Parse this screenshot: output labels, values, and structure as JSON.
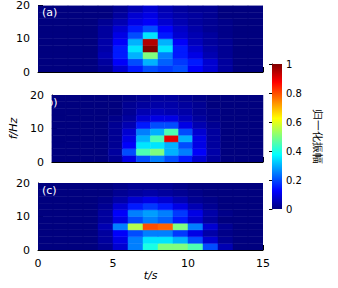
{
  "chart_data": {
    "type": "heatmap",
    "xlabel": "t/s",
    "ylabel": "f/Hz",
    "xlim": [
      0,
      15
    ],
    "xticks": [
      0,
      5,
      10,
      15
    ],
    "ylim": [
      0,
      20
    ],
    "yticks": [
      0,
      10,
      20
    ],
    "t_bins": [
      0,
      1,
      2,
      3,
      4,
      5,
      6,
      7,
      8,
      9,
      10,
      11,
      12,
      13,
      14,
      15
    ],
    "f_bins": [
      0,
      2,
      4,
      6,
      8,
      10,
      12,
      14,
      16,
      18,
      20
    ],
    "panels": [
      {
        "label": "(a)",
        "tick_labels": "y",
        "cells": [
          [
            0,
            0,
            0,
            0,
            0.02,
            0.08,
            0.15,
            0.2,
            0.18,
            0.2,
            0.12,
            0.08,
            0.03,
            0,
            0
          ],
          [
            0,
            0,
            0,
            0,
            0.03,
            0.12,
            0.2,
            0.3,
            0.22,
            0.18,
            0.15,
            0.08,
            0.03,
            0,
            0
          ],
          [
            0,
            0,
            0,
            0,
            0.05,
            0.15,
            0.3,
            0.5,
            0.25,
            0.15,
            0.1,
            0.05,
            0.02,
            0,
            0
          ],
          [
            0,
            0,
            0,
            0,
            0.04,
            0.15,
            0.35,
            1,
            0.35,
            0.15,
            0.08,
            0.04,
            0.02,
            0,
            0
          ],
          [
            0,
            0,
            0,
            0,
            0.04,
            0.12,
            0.3,
            0.95,
            0.3,
            0.12,
            0.06,
            0.03,
            0.02,
            0,
            0
          ],
          [
            0,
            0,
            0,
            0,
            0.03,
            0.1,
            0.2,
            0.35,
            0.15,
            0.08,
            0.05,
            0.03,
            0.01,
            0,
            0
          ],
          [
            0,
            0,
            0,
            0,
            0.03,
            0.08,
            0.15,
            0.2,
            0.12,
            0.07,
            0.04,
            0.02,
            0.01,
            0,
            0
          ],
          [
            0,
            0,
            0,
            0,
            0.02,
            0.05,
            0.1,
            0.12,
            0.08,
            0.05,
            0.03,
            0.02,
            0.01,
            0,
            0
          ],
          [
            0,
            0,
            0,
            0,
            0,
            0.03,
            0.08,
            0.1,
            0.06,
            0.04,
            0.03,
            0.02,
            0,
            0,
            0
          ],
          [
            0,
            0,
            0,
            0,
            0,
            0.02,
            0.05,
            0.08,
            0.05,
            0.03,
            0.02,
            0.02,
            0,
            0,
            0
          ]
        ]
      },
      {
        "label": "(b)",
        "tick_labels": "y",
        "cells": [
          [
            0,
            0,
            0,
            0,
            0.02,
            0.1,
            0.2,
            0.25,
            0.2,
            0.15,
            0.08,
            0.03,
            0,
            0,
            0
          ],
          [
            0,
            0,
            0,
            0,
            0.03,
            0.2,
            0.45,
            0.5,
            0.3,
            0.25,
            0.12,
            0.04,
            0,
            0,
            0
          ],
          [
            0,
            0,
            0,
            0,
            0.02,
            0.12,
            0.35,
            0.35,
            0.3,
            0.2,
            0.1,
            0.03,
            0,
            0,
            0
          ],
          [
            0,
            0,
            0,
            0,
            0.02,
            0.1,
            0.3,
            0.45,
            0.9,
            0.3,
            0.1,
            0.03,
            0,
            0,
            0
          ],
          [
            0,
            0,
            0,
            0,
            0.02,
            0.08,
            0.25,
            0.3,
            0.45,
            0.2,
            0.08,
            0.03,
            0,
            0,
            0
          ],
          [
            0,
            0,
            0,
            0,
            0.02,
            0.05,
            0.15,
            0.2,
            0.2,
            0.1,
            0.05,
            0.02,
            0,
            0,
            0
          ],
          [
            0,
            0,
            0,
            0,
            0.01,
            0.03,
            0.08,
            0.1,
            0.1,
            0.06,
            0.03,
            0.01,
            0,
            0,
            0
          ],
          [
            0,
            0,
            0,
            0,
            0,
            0.02,
            0.05,
            0.06,
            0.05,
            0.04,
            0.02,
            0.01,
            0,
            0,
            0
          ],
          [
            0,
            0,
            0,
            0,
            0,
            0.02,
            0.03,
            0.04,
            0.04,
            0.03,
            0.02,
            0,
            0,
            0,
            0
          ],
          [
            0,
            0,
            0,
            0,
            0,
            0.01,
            0.02,
            0.03,
            0.03,
            0.02,
            0.01,
            0,
            0,
            0,
            0
          ]
        ]
      },
      {
        "label": "(c)",
        "cells": [
          [
            0,
            0,
            0,
            0,
            0.02,
            0.08,
            0.25,
            0.4,
            0.5,
            0.5,
            0.45,
            0.2,
            0.05,
            0,
            0
          ],
          [
            0,
            0,
            0,
            0,
            0.03,
            0.1,
            0.25,
            0.35,
            0.35,
            0.3,
            0.2,
            0.08,
            0.02,
            0,
            0
          ],
          [
            0,
            0,
            0,
            0,
            0.03,
            0.12,
            0.2,
            0.25,
            0.25,
            0.18,
            0.1,
            0.04,
            0.01,
            0,
            0
          ],
          [
            0,
            0,
            0,
            0,
            0.05,
            0.25,
            0.55,
            0.8,
            0.78,
            0.5,
            0.25,
            0.08,
            0.02,
            0,
            0
          ],
          [
            0,
            0,
            0,
            0,
            0.03,
            0.1,
            0.2,
            0.25,
            0.22,
            0.15,
            0.08,
            0.03,
            0,
            0,
            0
          ],
          [
            0,
            0,
            0,
            0,
            0.03,
            0.12,
            0.25,
            0.28,
            0.25,
            0.18,
            0.1,
            0.04,
            0.01,
            0,
            0
          ],
          [
            0,
            0,
            0,
            0,
            0.02,
            0.08,
            0.15,
            0.18,
            0.15,
            0.1,
            0.05,
            0.02,
            0,
            0,
            0
          ],
          [
            0,
            0,
            0,
            0,
            0.01,
            0.04,
            0.08,
            0.1,
            0.08,
            0.05,
            0.02,
            0.01,
            0,
            0,
            0
          ],
          [
            0,
            0,
            0,
            0,
            0,
            0.02,
            0.03,
            0.04,
            0.03,
            0.02,
            0.01,
            0,
            0,
            0,
            0
          ],
          [
            0,
            0,
            0,
            0,
            0,
            0.01,
            0.02,
            0.02,
            0.02,
            0.01,
            0,
            0,
            0,
            0,
            0
          ]
        ]
      }
    ],
    "colorbar": {
      "label": "归一化振幅",
      "range": [
        0,
        1
      ],
      "ticks": [
        0,
        0.2,
        0.4,
        0.6,
        0.8,
        1
      ],
      "colors": [
        "#00007f",
        "#0000ff",
        "#007fff",
        "#00ffff",
        "#7fff7f",
        "#ffff00",
        "#ff7f00",
        "#ff0000",
        "#7f0000"
      ]
    }
  }
}
